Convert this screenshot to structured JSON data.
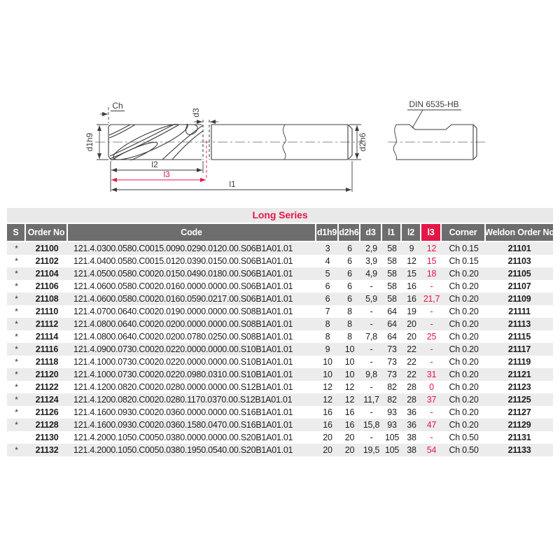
{
  "drawing": {
    "labels": {
      "ch": "Ch",
      "d3": "d3",
      "d1h9": "d1h9",
      "d2h6": "d2h6",
      "l1": "l1",
      "l2": "l2",
      "l3": "l3",
      "din": "DIN 6535-HB"
    },
    "colors": {
      "line": "#3d3d3d",
      "centerline": "#8a8a8a",
      "accent": "#e31747"
    }
  },
  "table": {
    "title": "Long Series",
    "columns": [
      "S",
      "Order No",
      "Code",
      "d1h9",
      "d2h6",
      "d3",
      "l1",
      "l2",
      "l3",
      "Corner",
      "Weldon Order No"
    ],
    "colors": {
      "header_bg": "#6e6d6e",
      "l3_header_bg": "#e31747",
      "title_bg": "#e9e9e9",
      "stripe": "#ececec",
      "accent": "#e31747"
    },
    "rows": [
      {
        "s": "*",
        "order_no": "21100",
        "code": "121.4.0300.0580.C0015.0090.0290.0120.00.S06B1A01.01",
        "d1h9": "3",
        "d2h6": "6",
        "d3": "2,9",
        "l1": "58",
        "l2": "9",
        "l3": "12",
        "corner": "Ch 0.15",
        "weldon_order_no": "21101"
      },
      {
        "s": "*",
        "order_no": "21102",
        "code": "121.4.0400.0580.C0015.0120.0390.0150.00.S06B1A01.01",
        "d1h9": "4",
        "d2h6": "6",
        "d3": "3,9",
        "l1": "58",
        "l2": "12",
        "l3": "15",
        "corner": "Ch 0.15",
        "weldon_order_no": "21103"
      },
      {
        "s": "*",
        "order_no": "21104",
        "code": "121.4.0500.0580.C0020.0150.0490.0180.00.S06B1A01.01",
        "d1h9": "5",
        "d2h6": "6",
        "d3": "4,9",
        "l1": "58",
        "l2": "15",
        "l3": "18",
        "corner": "Ch 0.20",
        "weldon_order_no": "21105"
      },
      {
        "s": "*",
        "order_no": "21106",
        "code": "121.4.0600.0580.C0020.0160.0000.0000.00.S06B1A01.01",
        "d1h9": "6",
        "d2h6": "6",
        "d3": "-",
        "l1": "58",
        "l2": "16",
        "l3": "-",
        "corner": "Ch 0.20",
        "weldon_order_no": "21107"
      },
      {
        "s": "*",
        "order_no": "21108",
        "code": "121.4.0600.0580.C0020.0160.0590.0217.00.S06B1A01.01",
        "d1h9": "6",
        "d2h6": "6",
        "d3": "5,9",
        "l1": "58",
        "l2": "16",
        "l3": "21,7",
        "corner": "Ch 0.20",
        "weldon_order_no": "21109"
      },
      {
        "s": "*",
        "order_no": "21110",
        "code": "121.4.0700.0640.C0020.0190.0000.0000.00.S08B1A01.01",
        "d1h9": "7",
        "d2h6": "8",
        "d3": "-",
        "l1": "64",
        "l2": "19",
        "l3": "-",
        "corner": "Ch 0.20",
        "weldon_order_no": "21111"
      },
      {
        "s": "*",
        "order_no": "21112",
        "code": "121.4.0800.0640.C0020.0200.0000.0000.00.S08B1A01.01",
        "d1h9": "8",
        "d2h6": "8",
        "d3": "-",
        "l1": "64",
        "l2": "20",
        "l3": "-",
        "corner": "Ch 0.20",
        "weldon_order_no": "21113"
      },
      {
        "s": "*",
        "order_no": "21114",
        "code": "121.4.0800.0640.C0020.0200.0780.0250.00.S08B1A01.01",
        "d1h9": "8",
        "d2h6": "8",
        "d3": "7,8",
        "l1": "64",
        "l2": "20",
        "l3": "25",
        "corner": "Ch 0.20",
        "weldon_order_no": "21115"
      },
      {
        "s": "*",
        "order_no": "21116",
        "code": "121.4.0900.0730.C0020.0220.0000.0000.00.S10B1A01.01",
        "d1h9": "9",
        "d2h6": "10",
        "d3": "-",
        "l1": "73",
        "l2": "22",
        "l3": "-",
        "corner": "Ch 0.20",
        "weldon_order_no": "21117"
      },
      {
        "s": "*",
        "order_no": "21118",
        "code": "121.4.1000.0730.C0020.0220.0000.0000.00.S10B1A01.01",
        "d1h9": "10",
        "d2h6": "10",
        "d3": "-",
        "l1": "73",
        "l2": "22",
        "l3": "-",
        "corner": "Ch 0.20",
        "weldon_order_no": "21119"
      },
      {
        "s": "*",
        "order_no": "21120",
        "code": "121.4.1000.0730.C0020.0220.0980.0310.00.S10B1A01.01",
        "d1h9": "10",
        "d2h6": "10",
        "d3": "9,8",
        "l1": "73",
        "l2": "22",
        "l3": "31",
        "corner": "Ch 0.20",
        "weldon_order_no": "21121"
      },
      {
        "s": "*",
        "order_no": "21122",
        "code": "121.4.1200.0820.C0020.0280.0000.0000.00.S12B1A01.01",
        "d1h9": "12",
        "d2h6": "12",
        "d3": "-",
        "l1": "82",
        "l2": "28",
        "l3": "0",
        "corner": "Ch 0.20",
        "weldon_order_no": "21123"
      },
      {
        "s": "*",
        "order_no": "21124",
        "code": "121.4.1200.0820.C0020.0280.1170.0370.00.S12B1A01.01",
        "d1h9": "12",
        "d2h6": "12",
        "d3": "11,7",
        "l1": "82",
        "l2": "28",
        "l3": "37",
        "corner": "Ch 0.20",
        "weldon_order_no": "21125"
      },
      {
        "s": "*",
        "order_no": "21126",
        "code": "121.4.1600.0930.C0020.0360.0000.0000.00.S16B1A01.01",
        "d1h9": "16",
        "d2h6": "16",
        "d3": "-",
        "l1": "93",
        "l2": "36",
        "l3": "-",
        "corner": "Ch 0.20",
        "weldon_order_no": "21127"
      },
      {
        "s": "*",
        "order_no": "21128",
        "code": "121.4.1600.0930.C0020.0360.1580.0470.00.S16B1A01.01",
        "d1h9": "16",
        "d2h6": "16",
        "d3": "15,8",
        "l1": "93",
        "l2": "36",
        "l3": "47",
        "corner": "Ch 0.20",
        "weldon_order_no": "21129"
      },
      {
        "s": "",
        "order_no": "21130",
        "code": "121.4.2000.1050.C0050.0380.0000.0000.00.S20B1A01.01",
        "d1h9": "20",
        "d2h6": "20",
        "d3": "-",
        "l1": "105",
        "l2": "38",
        "l3": "-",
        "corner": "Ch 0.50",
        "weldon_order_no": "21131"
      },
      {
        "s": "*",
        "order_no": "21132",
        "code": "121.4.2000.1050.C0050.0380.1950.0540.00.S20B1A01.01",
        "d1h9": "20",
        "d2h6": "20",
        "d3": "19,5",
        "l1": "105",
        "l2": "38",
        "l3": "54",
        "corner": "Ch 0.50",
        "weldon_order_no": "21133"
      }
    ]
  }
}
